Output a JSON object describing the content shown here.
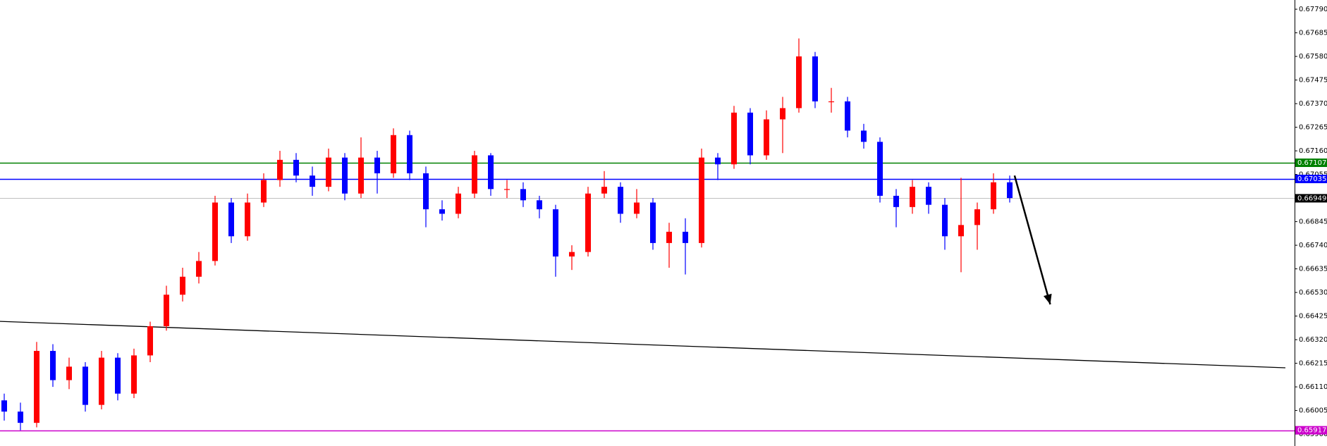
{
  "chart_data": {
    "type": "candlestick",
    "up_color": "#ff0000",
    "down_color": "#0000ff",
    "open": [
      0.6605,
      0.66,
      0.6595,
      0.6627,
      0.6614,
      0.662,
      0.6603,
      0.6624,
      0.6608,
      0.6625,
      0.6638,
      0.6652,
      0.666,
      0.6667,
      0.6693,
      0.6678,
      0.6693,
      0.6703,
      0.6712,
      0.6705,
      0.67,
      0.6713,
      0.6697,
      0.6713,
      0.6706,
      0.6723,
      0.6706,
      0.669,
      0.6688,
      0.6697,
      0.6714,
      0.6699,
      0.6699,
      0.6694,
      0.669,
      0.6669,
      0.6671,
      0.6697,
      0.67,
      0.6688,
      0.6693,
      0.6675,
      0.668,
      0.6675,
      0.6713,
      0.671,
      0.6733,
      0.6714,
      0.673,
      0.6735,
      0.6758,
      0.6738,
      0.6738,
      0.6725,
      0.672,
      0.6696,
      0.6691,
      0.67,
      0.6692,
      0.6678,
      0.6683,
      0.669,
      0.6702
    ],
    "high": [
      0.6608,
      0.6604,
      0.6631,
      0.663,
      0.6624,
      0.6622,
      0.6627,
      0.6626,
      0.6628,
      0.664,
      0.6656,
      0.6664,
      0.6671,
      0.6696,
      0.6695,
      0.6697,
      0.6706,
      0.6716,
      0.6715,
      0.6709,
      0.6717,
      0.6715,
      0.6722,
      0.6716,
      0.6726,
      0.6725,
      0.6709,
      0.6694,
      0.67,
      0.6716,
      0.6715,
      0.6703,
      0.6702,
      0.6696,
      0.6692,
      0.6674,
      0.67,
      0.6707,
      0.6702,
      0.6699,
      0.6695,
      0.6684,
      0.6686,
      0.6717,
      0.6715,
      0.6736,
      0.6735,
      0.6734,
      0.674,
      0.6766,
      0.676,
      0.6744,
      0.674,
      0.6728,
      0.6722,
      0.6699,
      0.6703,
      0.6702,
      0.6695,
      0.6704,
      0.6693,
      0.6706,
      0.6705
    ],
    "low": [
      0.6596,
      0.65917,
      0.6593,
      0.6611,
      0.661,
      0.66,
      0.6601,
      0.6605,
      0.6606,
      0.6622,
      0.6636,
      0.6649,
      0.6657,
      0.6665,
      0.6675,
      0.6676,
      0.6691,
      0.67,
      0.6702,
      0.6696,
      0.6698,
      0.6694,
      0.6695,
      0.6697,
      0.6704,
      0.6703,
      0.6682,
      0.6685,
      0.6686,
      0.6695,
      0.6696,
      0.6695,
      0.6691,
      0.6686,
      0.666,
      0.6663,
      0.6669,
      0.6695,
      0.6684,
      0.6686,
      0.6672,
      0.6664,
      0.6661,
      0.6673,
      0.6703,
      0.6708,
      0.671,
      0.6712,
      0.6715,
      0.6733,
      0.6735,
      0.6733,
      0.6722,
      0.6717,
      0.6693,
      0.6682,
      0.6688,
      0.6688,
      0.6672,
      0.6662,
      0.6672,
      0.6688,
      0.6693
    ],
    "close": [
      0.66,
      0.6595,
      0.6627,
      0.6614,
      0.662,
      0.6603,
      0.6624,
      0.6608,
      0.6625,
      0.6638,
      0.6652,
      0.666,
      0.6667,
      0.6693,
      0.6678,
      0.6693,
      0.6703,
      0.6712,
      0.6705,
      0.67,
      0.6713,
      0.6697,
      0.6713,
      0.6706,
      0.6723,
      0.6706,
      0.669,
      0.6688,
      0.6697,
      0.6714,
      0.6699,
      0.6699,
      0.6694,
      0.669,
      0.6669,
      0.6671,
      0.6697,
      0.67,
      0.6688,
      0.6693,
      0.6675,
      0.668,
      0.6675,
      0.6713,
      0.671,
      0.6733,
      0.6714,
      0.673,
      0.6735,
      0.6758,
      0.6738,
      0.6738,
      0.6725,
      0.672,
      0.6696,
      0.6691,
      0.67,
      0.6692,
      0.6678,
      0.6683,
      0.669,
      0.6702,
      0.6695
    ],
    "ylim": [
      0.65847,
      0.67831
    ],
    "yticks": [
      {
        "value": 0.6779,
        "label": "0.67790"
      },
      {
        "value": 0.67685,
        "label": "0.67685"
      },
      {
        "value": 0.6758,
        "label": "0.67580"
      },
      {
        "value": 0.67475,
        "label": "0.67475"
      },
      {
        "value": 0.6737,
        "label": "0.67370"
      },
      {
        "value": 0.67265,
        "label": "0.67265"
      },
      {
        "value": 0.6716,
        "label": "0.67160"
      },
      {
        "value": 0.67055,
        "label": "0.67055"
      },
      {
        "value": 0.66845,
        "label": "0.66845"
      },
      {
        "value": 0.6674,
        "label": "0.66740"
      },
      {
        "value": 0.66635,
        "label": "0.66635"
      },
      {
        "value": 0.6653,
        "label": "0.66530"
      },
      {
        "value": 0.66425,
        "label": "0.66425"
      },
      {
        "value": 0.6632,
        "label": "0.66320"
      },
      {
        "value": 0.66215,
        "label": "0.66215"
      },
      {
        "value": 0.6611,
        "label": "0.66110"
      },
      {
        "value": 0.66005,
        "label": "0.66005"
      },
      {
        "value": 0.659,
        "label": "0.65900"
      }
    ],
    "levels": [
      {
        "value": 0.67107,
        "label": "0.67107",
        "color": "#008000"
      },
      {
        "value": 0.67035,
        "label": "0.67035",
        "color": "#0000ff"
      },
      {
        "value": 0.66949,
        "label": "0.66949",
        "color": "#000000",
        "line_color": "#c0c0c0"
      },
      {
        "value": 0.65917,
        "label": "0.65917",
        "color": "#cc00cc"
      }
    ],
    "trendline": {
      "x": [
        -0.5,
        79
      ],
      "y": [
        0.66402,
        0.66195
      ],
      "color": "#000000"
    },
    "arrow": {
      "x": [
        62.3,
        64.5
      ],
      "y": [
        0.6705,
        0.66477
      ],
      "color": "#000000"
    }
  }
}
